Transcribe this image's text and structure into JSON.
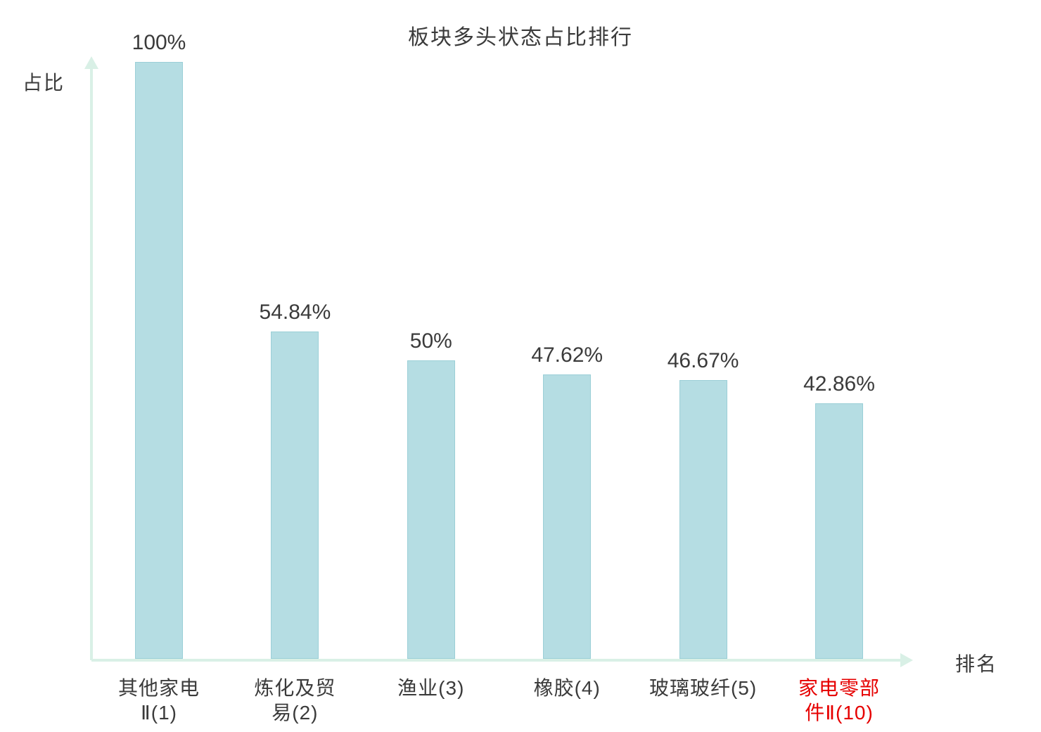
{
  "chart_data": {
    "type": "bar",
    "title": "板块多头状态占比排行",
    "ylabel": "占比",
    "xlabel": "排名",
    "categories": [
      "其他家电Ⅱ(1)",
      "炼化及贸易(2)",
      "渔业(3)",
      "橡胶(4)",
      "玻璃玻纤(5)",
      "家电零部件Ⅱ(10)"
    ],
    "category_lines": [
      [
        "其他家电",
        "Ⅱ(1)"
      ],
      [
        "炼化及贸",
        "易(2)"
      ],
      [
        "渔业(3)"
      ],
      [
        "橡胶(4)"
      ],
      [
        "玻璃玻纤(5)"
      ],
      [
        "家电零部",
        "件Ⅱ(10)"
      ]
    ],
    "values": [
      100,
      54.84,
      50,
      47.62,
      46.67,
      42.86
    ],
    "value_labels": [
      "100%",
      "54.84%",
      "50%",
      "47.62%",
      "46.67%",
      "42.86%"
    ],
    "ylim": [
      0,
      100
    ],
    "legend": null,
    "grid": false,
    "bar_color": "#b5dde3",
    "bar_border_color": "#9bcfd7",
    "axis_color": "#d9f0e6",
    "text_color": "#3b3b3b",
    "highlight_index": 5,
    "highlight_color": "#e60000"
  }
}
